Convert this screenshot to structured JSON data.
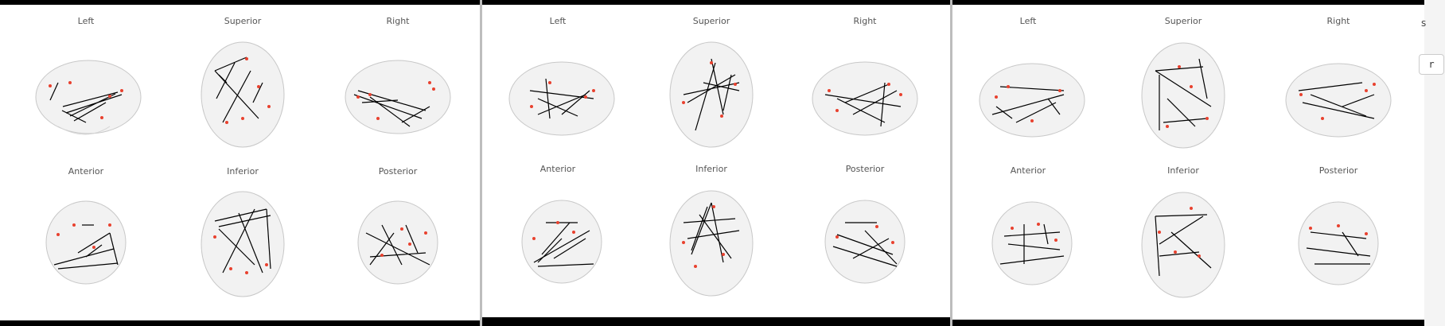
{
  "panels": [
    {
      "views": {
        "left": "Left",
        "superior": "Superior",
        "right": "Right",
        "anterior": "Anterior",
        "inferior": "Inferior",
        "posterior": "Posterior"
      }
    },
    {
      "views": {
        "left": "Left",
        "superior": "Superior",
        "right": "Right",
        "anterior": "Anterior",
        "inferior": "Inferior",
        "posterior": "Posterior"
      }
    },
    {
      "views": {
        "left": "Left",
        "superior": "Superior",
        "right": "Right",
        "anterior": "Anterior",
        "inferior": "Inferior",
        "posterior": "Posterior"
      }
    }
  ],
  "side_button": {
    "label": "r"
  },
  "side_fragment": "s",
  "colors": {
    "edge": "#000000",
    "node": "#e8412e",
    "brain_fill": "#f2f2f2",
    "brain_outline": "#c8c8c8"
  }
}
